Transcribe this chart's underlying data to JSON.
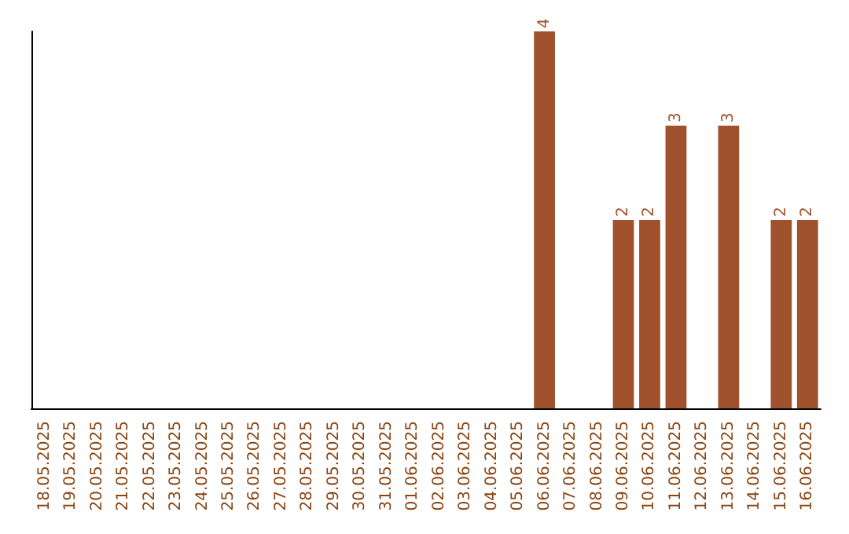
{
  "chart_data": {
    "type": "bar",
    "categories": [
      "18.05.2025",
      "19.05.2025",
      "20.05.2025",
      "21.05.2025",
      "22.05.2025",
      "23.05.2025",
      "24.05.2025",
      "25.05.2025",
      "26.05.2025",
      "27.05.2025",
      "28.05.2025",
      "29.05.2025",
      "30.05.2025",
      "31.05.2025",
      "01.06.2025",
      "02.06.2025",
      "03.06.2025",
      "04.06.2025",
      "05.06.2025",
      "06.06.2025",
      "07.06.2025",
      "08.06.2025",
      "09.06.2025",
      "10.06.2025",
      "11.06.2025",
      "12.06.2025",
      "13.06.2025",
      "14.06.2025",
      "15.06.2025",
      "16.06.2025"
    ],
    "values": [
      null,
      null,
      null,
      null,
      null,
      null,
      null,
      null,
      null,
      null,
      null,
      null,
      null,
      null,
      null,
      null,
      null,
      null,
      null,
      4,
      null,
      null,
      2,
      2,
      3,
      null,
      3,
      null,
      2,
      2
    ],
    "data_labels": true,
    "color": "#a0522d",
    "tick_labels": "x",
    "grid": false
  }
}
